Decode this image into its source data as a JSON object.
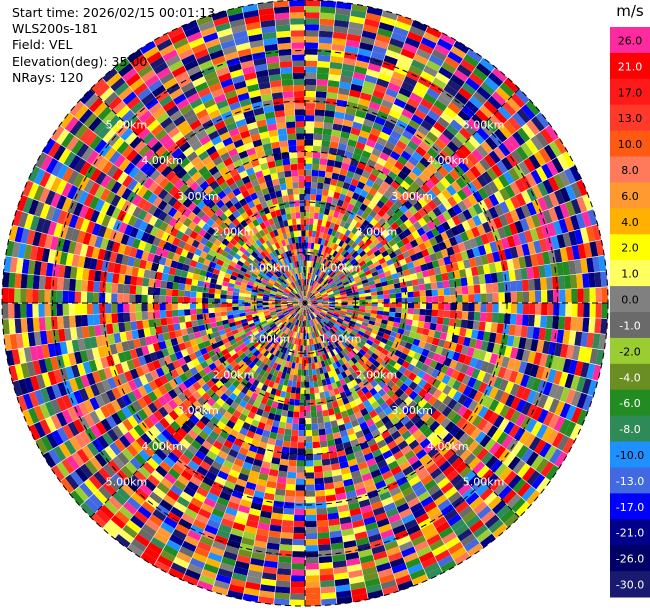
{
  "header": {
    "start_time_label": "Start time: 2026/02/15 00:01:13",
    "instrument": "WLS200s-181",
    "field_label": "Field: VEL",
    "elevation_label": "Elevation(deg): 35.00",
    "nrays_label": "NRays: 120"
  },
  "chart_data": {
    "type": "heatmap",
    "projection": "polar-ppi",
    "field": "VEL",
    "units": "m/s",
    "n_rays": 120,
    "n_gates": 50,
    "range_max_km": 6.0,
    "range_rings_km": [
      1.0,
      2.0,
      3.0,
      4.0,
      5.0,
      6.0
    ],
    "range_ring_labels": [
      "1.00km",
      "2.00km",
      "3.00km",
      "4.00km",
      "5.00km"
    ],
    "colorbar": {
      "unit_label": "m/s",
      "tick_labels": [
        "26.0",
        "21.0",
        "17.0",
        "13.0",
        "10.0",
        "8.0",
        "6.0",
        "4.0",
        "2.0",
        "1.0",
        "0.0",
        "-1.0",
        "-2.0",
        "-4.0",
        "-6.0",
        "-8.0",
        "-10.0",
        "-13.0",
        "-17.0",
        "-21.0",
        "-26.0",
        "-30.0"
      ],
      "colors": [
        "#ff2aa0",
        "#ff0000",
        "#ff1a1a",
        "#ff3a2a",
        "#ff5a14",
        "#ff7a5a",
        "#ff9a30",
        "#ffb000",
        "#ffff00",
        "#ffff60",
        "#808080",
        "#6a6a6a",
        "#9acd32",
        "#6b8e23",
        "#228b22",
        "#2e8b57",
        "#1e90ff",
        "#4169e1",
        "#0000ff",
        "#00008b",
        "#000066",
        "#191970"
      ]
    },
    "note": "Velocity field appears as noise (random values) over all gates."
  }
}
